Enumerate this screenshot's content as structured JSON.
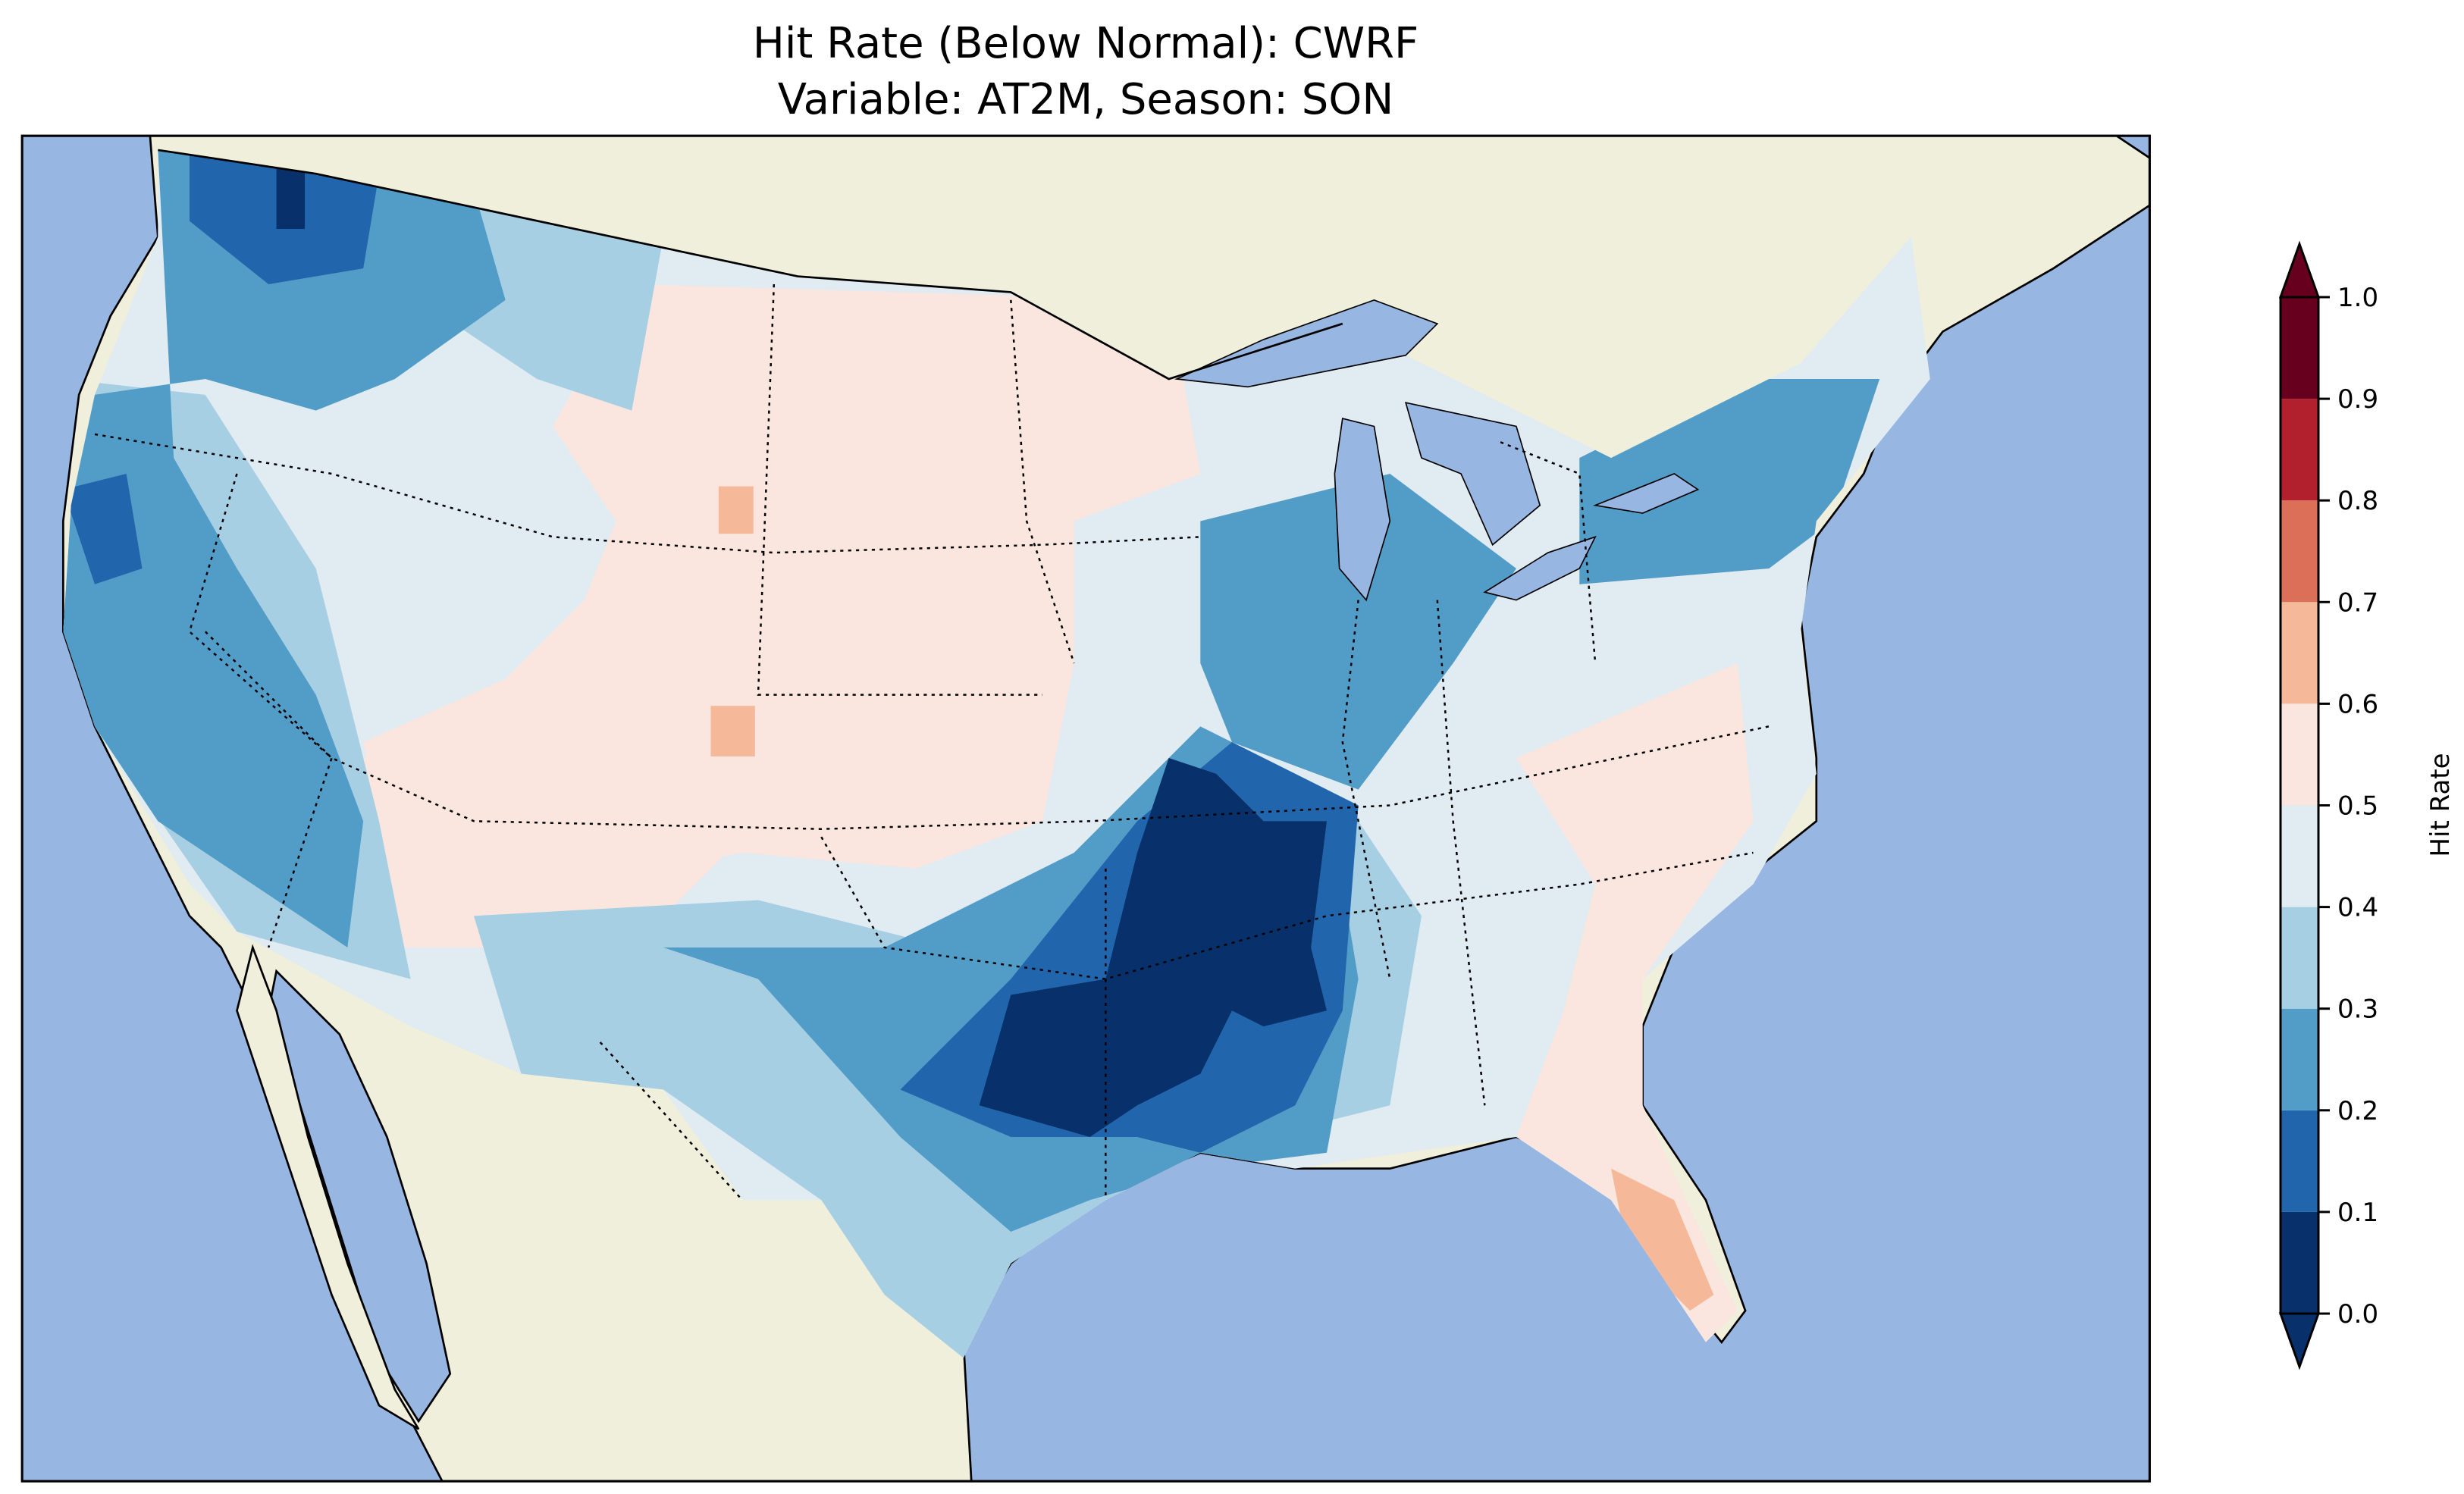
{
  "chart_data": {
    "type": "heatmap",
    "title": "Hit Rate (Below Normal): CWRF",
    "subtitle": "Variable: AT2M, Season: SON",
    "colorbar": {
      "label": "Hit Rate",
      "ticks": [
        "0.0",
        "0.1",
        "0.2",
        "0.3",
        "0.4",
        "0.5",
        "0.6",
        "0.7",
        "0.8",
        "0.9",
        "1.0"
      ],
      "range": [
        0.0,
        1.0
      ],
      "extend": "both",
      "colors": [
        "#08306b",
        "#2166ac",
        "#529dc8",
        "#a7cfe4",
        "#e0ebf2",
        "#fae6de",
        "#f5b899",
        "#dc6f58",
        "#b2202e",
        "#67001f"
      ]
    },
    "map": {
      "ocean_color": "#97b6e1",
      "land_color": "#efefdb",
      "region": "Contiguous United States",
      "summary_bins": {
        "lower_mississippi_valley": 0.05,
        "pacific_northwest": 0.15,
        "northeast": 0.25,
        "great_plains": 0.55,
        "florida_peninsula": 0.65,
        "intermountain_west": 0.45
      }
    }
  }
}
